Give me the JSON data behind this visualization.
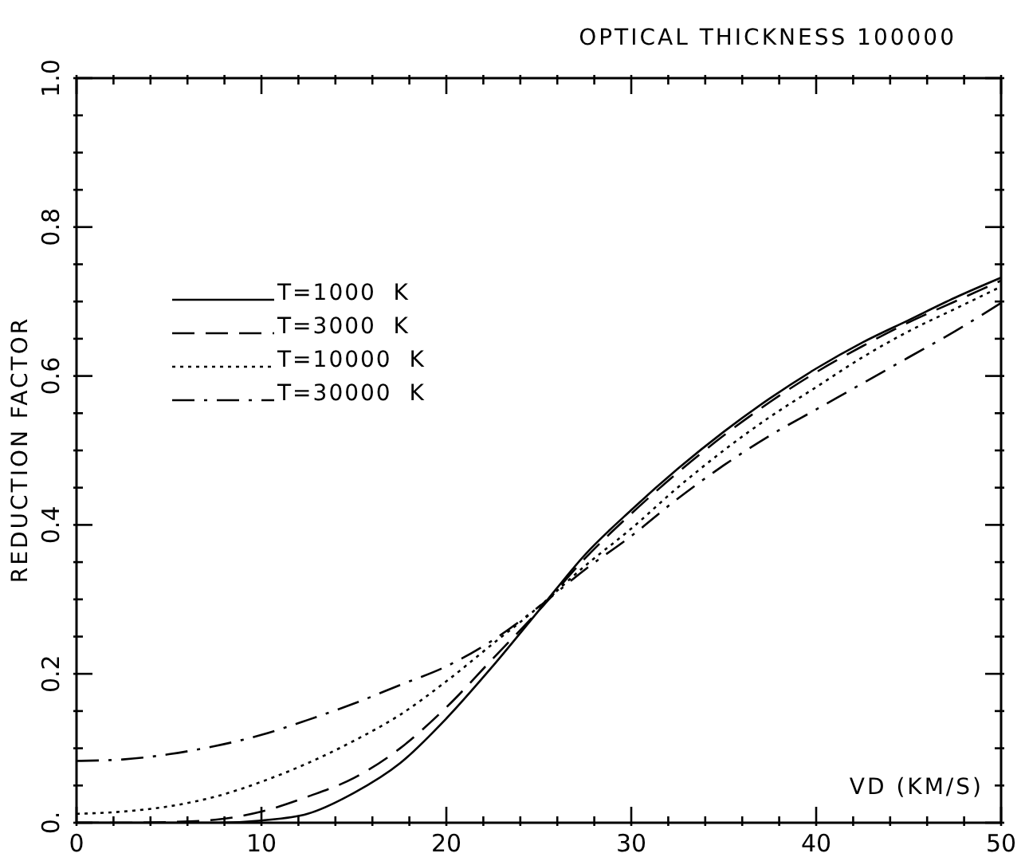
{
  "chart_data": {
    "type": "line",
    "title": "OPTICAL THICKNESS 100000",
    "xlabel": "VD (KM/S)",
    "ylabel": "REDUCTION FACTOR",
    "x": [
      0,
      2.5,
      5,
      7.5,
      10,
      12.5,
      15,
      17.5,
      20,
      22.5,
      25,
      27.5,
      30,
      32.5,
      35,
      37.5,
      40,
      42.5,
      45,
      47.5,
      50
    ],
    "series": [
      {
        "name": "T=1000  K",
        "color": "#000000",
        "line_style": "solid",
        "values": [
          0,
          0,
          0,
          0,
          0.003,
          0.012,
          0.04,
          0.08,
          0.14,
          0.21,
          0.285,
          0.36,
          0.42,
          0.475,
          0.525,
          0.57,
          0.61,
          0.645,
          0.675,
          0.705,
          0.732
        ]
      },
      {
        "name": "T=3000  K",
        "color": "#000000",
        "line_style": "dashed",
        "values": [
          0,
          0,
          0.001,
          0.004,
          0.015,
          0.035,
          0.06,
          0.1,
          0.155,
          0.22,
          0.285,
          0.355,
          0.415,
          0.47,
          0.52,
          0.565,
          0.605,
          0.64,
          0.672,
          0.7,
          0.728
        ]
      },
      {
        "name": "T=10000  K",
        "color": "#000000",
        "line_style": "dotted",
        "values": [
          0.012,
          0.015,
          0.022,
          0.035,
          0.055,
          0.08,
          0.11,
          0.145,
          0.19,
          0.24,
          0.29,
          0.345,
          0.395,
          0.45,
          0.5,
          0.545,
          0.585,
          0.625,
          0.66,
          0.69,
          0.72
        ]
      },
      {
        "name": "T=30000  K",
        "color": "#000000",
        "line_style": "dashdot",
        "values": [
          0.083,
          0.085,
          0.092,
          0.103,
          0.118,
          0.138,
          0.16,
          0.185,
          0.21,
          0.245,
          0.29,
          0.34,
          0.385,
          0.435,
          0.48,
          0.52,
          0.555,
          0.59,
          0.625,
          0.66,
          0.698
        ]
      }
    ],
    "xlim": [
      0,
      50
    ],
    "xticks": [
      0,
      {
        "value": 2,
        "label": null
      },
      {
        "value": 4,
        "label": null
      },
      {
        "value": 6,
        "label": null
      },
      {
        "value": 8,
        "label": null
      },
      10,
      {
        "value": 12,
        "label": null
      },
      {
        "value": 14,
        "label": null
      },
      {
        "value": 16,
        "label": null
      },
      {
        "value": 18,
        "label": null
      },
      20,
      {
        "value": 22,
        "label": null
      },
      {
        "value": 24,
        "label": null
      },
      {
        "value": 26,
        "label": null
      },
      {
        "value": 28,
        "label": null
      },
      30,
      {
        "value": 32,
        "label": null
      },
      {
        "value": 34,
        "label": null
      },
      {
        "value": 36,
        "label": null
      },
      {
        "value": 38,
        "label": null
      },
      40,
      {
        "value": 42,
        "label": null
      },
      {
        "value": 44,
        "label": null
      },
      {
        "value": 46,
        "label": null
      },
      {
        "value": 48,
        "label": null
      },
      50
    ],
    "ylim": [
      0,
      1
    ],
    "yticks": [
      {
        "value": 0,
        "label": "0."
      },
      {
        "value": 0.05,
        "label": null
      },
      {
        "value": 0.1,
        "label": null
      },
      {
        "value": 0.15,
        "label": null
      },
      {
        "value": 0.2,
        "label": "0.2"
      },
      {
        "value": 0.25,
        "label": null
      },
      {
        "value": 0.3,
        "label": null
      },
      {
        "value": 0.35,
        "label": null
      },
      {
        "value": 0.4,
        "label": "0.4"
      },
      {
        "value": 0.45,
        "label": null
      },
      {
        "value": 0.5,
        "label": null
      },
      {
        "value": 0.55,
        "label": null
      },
      {
        "value": 0.6,
        "label": "0.6"
      },
      {
        "value": 0.65,
        "label": null
      },
      {
        "value": 0.7,
        "label": null
      },
      {
        "value": 0.75,
        "label": null
      },
      {
        "value": 0.8,
        "label": "0.8"
      },
      {
        "value": 0.85,
        "label": null
      },
      {
        "value": 0.9,
        "label": null
      },
      {
        "value": 0.95,
        "label": null
      },
      {
        "value": 1,
        "label": "1.0"
      }
    ],
    "grid": false,
    "legend": "top left",
    "marker": "none"
  }
}
